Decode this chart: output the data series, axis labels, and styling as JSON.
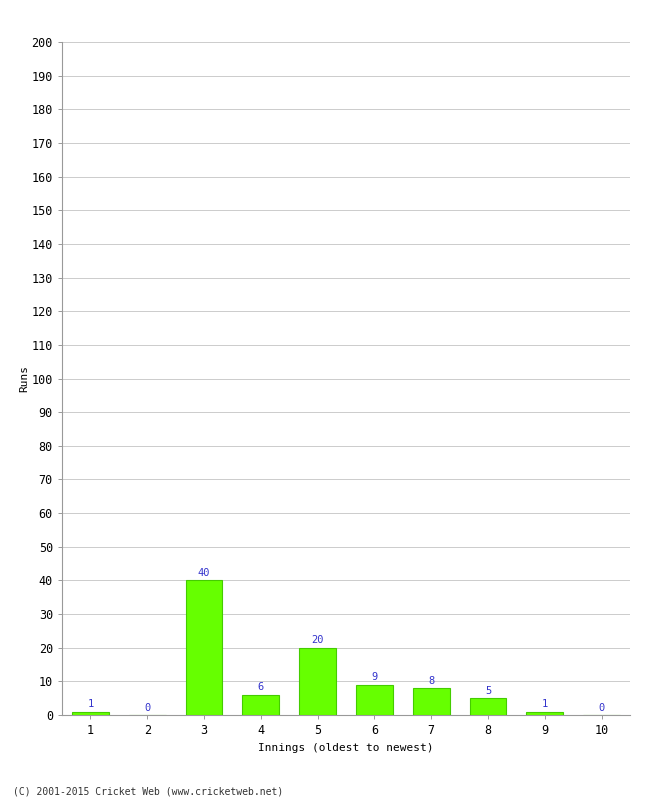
{
  "categories": [
    1,
    2,
    3,
    4,
    5,
    6,
    7,
    8,
    9,
    10
  ],
  "values": [
    1,
    0,
    40,
    6,
    20,
    9,
    8,
    5,
    1,
    0
  ],
  "bar_color": "#66ff00",
  "bar_edge_color": "#44cc00",
  "label_color": "#3333cc",
  "ylabel": "Runs",
  "xlabel": "Innings (oldest to newest)",
  "ylim": [
    0,
    200
  ],
  "yticks": [
    0,
    10,
    20,
    30,
    40,
    50,
    60,
    70,
    80,
    90,
    100,
    110,
    120,
    130,
    140,
    150,
    160,
    170,
    180,
    190,
    200
  ],
  "xticks": [
    1,
    2,
    3,
    4,
    5,
    6,
    7,
    8,
    9,
    10
  ],
  "footer": "(C) 2001-2015 Cricket Web (www.cricketweb.net)",
  "background_color": "#ffffff",
  "grid_color": "#cccccc",
  "label_fontsize": 7.5,
  "axis_fontsize": 8.5,
  "ylabel_fontsize": 8,
  "xlabel_fontsize": 8,
  "footer_fontsize": 7
}
